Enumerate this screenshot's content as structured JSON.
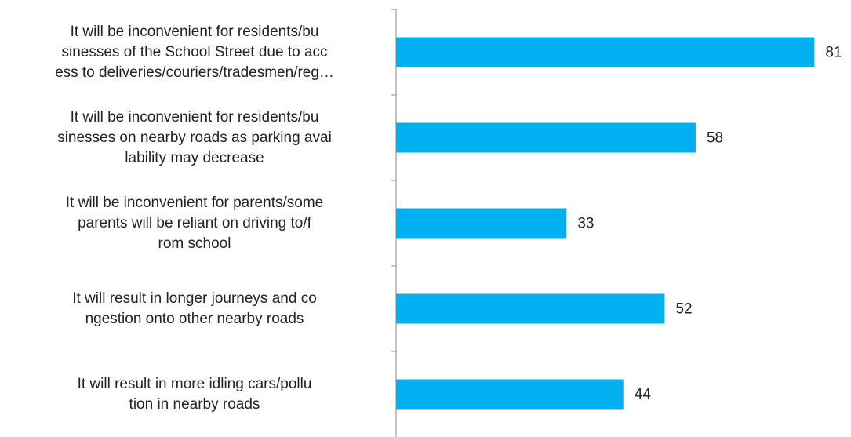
{
  "chart_data": {
    "type": "barh",
    "categories": [
      "It will be inconvenient for residents/bu\nsinesses of the School Street due to acc\ness to deliveries/couriers/tradesmen/reg…",
      "It will be inconvenient for residents/bu\nsinesses on nearby roads as parking avai\nlability may decrease",
      "It will be inconvenient for parents/some\nparents will be reliant on driving to/f\nrom school",
      "It will result in longer journeys and co\nngestion onto other nearby roads",
      "It will result in more idling cars/pollu\ntion in nearby roads"
    ],
    "values": [
      81,
      58,
      33,
      52,
      44
    ],
    "color": "#00b0f0",
    "xlim": [
      0,
      82
    ]
  }
}
